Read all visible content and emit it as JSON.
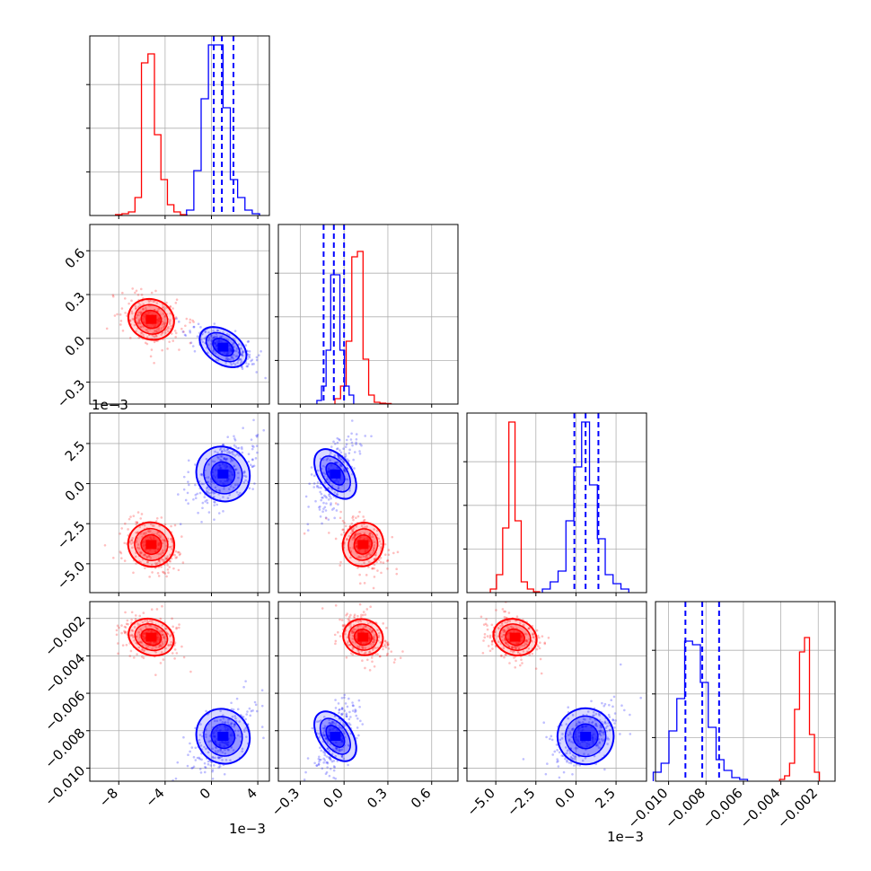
{
  "chart_data": {
    "type": "corner",
    "parameters": [
      {
        "tick_labels": [
          "−8",
          "−4",
          "0",
          "4"
        ],
        "ticks": [
          -0.008,
          -0.004,
          0,
          0.004
        ],
        "range": [
          -0.0105,
          0.005
        ],
        "offset_text": "1e−3"
      },
      {
        "tick_labels": [
          "−0.3",
          "0.0",
          "0.3",
          "0.6"
        ],
        "ticks": [
          -0.3,
          0.0,
          0.3,
          0.6
        ],
        "range": [
          -0.45,
          0.78
        ]
      },
      {
        "tick_labels": [
          "−5.0",
          "−2.5",
          "0.0",
          "2.5"
        ],
        "ticks": [
          -0.005,
          -0.0025,
          0,
          0.0025
        ],
        "range": [
          -0.0068,
          0.0044
        ],
        "offset_text": "1e−3"
      },
      {
        "tick_labels": [
          "−0.010",
          "−0.008",
          "−0.006",
          "−0.004",
          "−0.002"
        ],
        "ticks": [
          -0.01,
          -0.008,
          -0.006,
          -0.004,
          -0.002
        ],
        "range": [
          -0.0107,
          -0.0011
        ]
      }
    ],
    "series": [
      {
        "color": "#ff0000",
        "centers": [
          -0.0052,
          0.13,
          -0.0038,
          -0.003
        ],
        "sigmas": [
          0.0008,
          0.055,
          0.00055,
          0.00038
        ],
        "histograms": [
          [
            0.005,
            0.01,
            0.02,
            0.1,
            0.85,
            0.9,
            0.45,
            0.2,
            0.06,
            0.02,
            0.005
          ],
          [
            0.03,
            0.1,
            0.35,
            0.82,
            0.85,
            0.25,
            0.05,
            0.01,
            0.005,
            0.003
          ],
          [
            0.02,
            0.1,
            0.36,
            0.95,
            0.4,
            0.06,
            0.02,
            0.005
          ],
          [
            0.01,
            0.03,
            0.1,
            0.4,
            0.72,
            0.8,
            0.26,
            0.05
          ]
        ]
      },
      {
        "color": "#0000ff",
        "centers": [
          0.001,
          -0.06,
          0.0006,
          -0.0083
        ],
        "sigmas": [
          0.0009,
          0.045,
          0.0007,
          0.0006
        ],
        "histograms": [
          [
            0.03,
            0.25,
            0.65,
            0.95,
            0.95,
            0.6,
            0.2,
            0.1,
            0.03,
            0.01
          ],
          [
            0.02,
            0.1,
            0.3,
            0.72,
            0.72,
            0.3,
            0.1,
            0.05
          ],
          [
            0.02,
            0.06,
            0.12,
            0.4,
            0.7,
            0.95,
            0.6,
            0.3,
            0.1,
            0.05,
            0.02
          ],
          [
            0.05,
            0.1,
            0.28,
            0.46,
            0.78,
            0.76,
            0.55,
            0.3,
            0.12,
            0.06,
            0.02,
            0.01
          ]
        ],
        "quantiles": [
          [
            0.0002,
            0.0009,
            0.0019
          ],
          [
            -0.14,
            -0.07,
            0.0
          ],
          [
            -0.0001,
            0.0006,
            0.0014
          ],
          [
            -0.0091,
            -0.0082,
            -0.0073
          ]
        ]
      }
    ],
    "offset_texts": [
      {
        "text": "1e−3",
        "axis": "y",
        "row": 2
      },
      {
        "text": "1e−3",
        "axis": "x",
        "col": 0
      },
      {
        "text": "1e−3",
        "axis": "x",
        "col": 2
      }
    ],
    "grid": true
  }
}
